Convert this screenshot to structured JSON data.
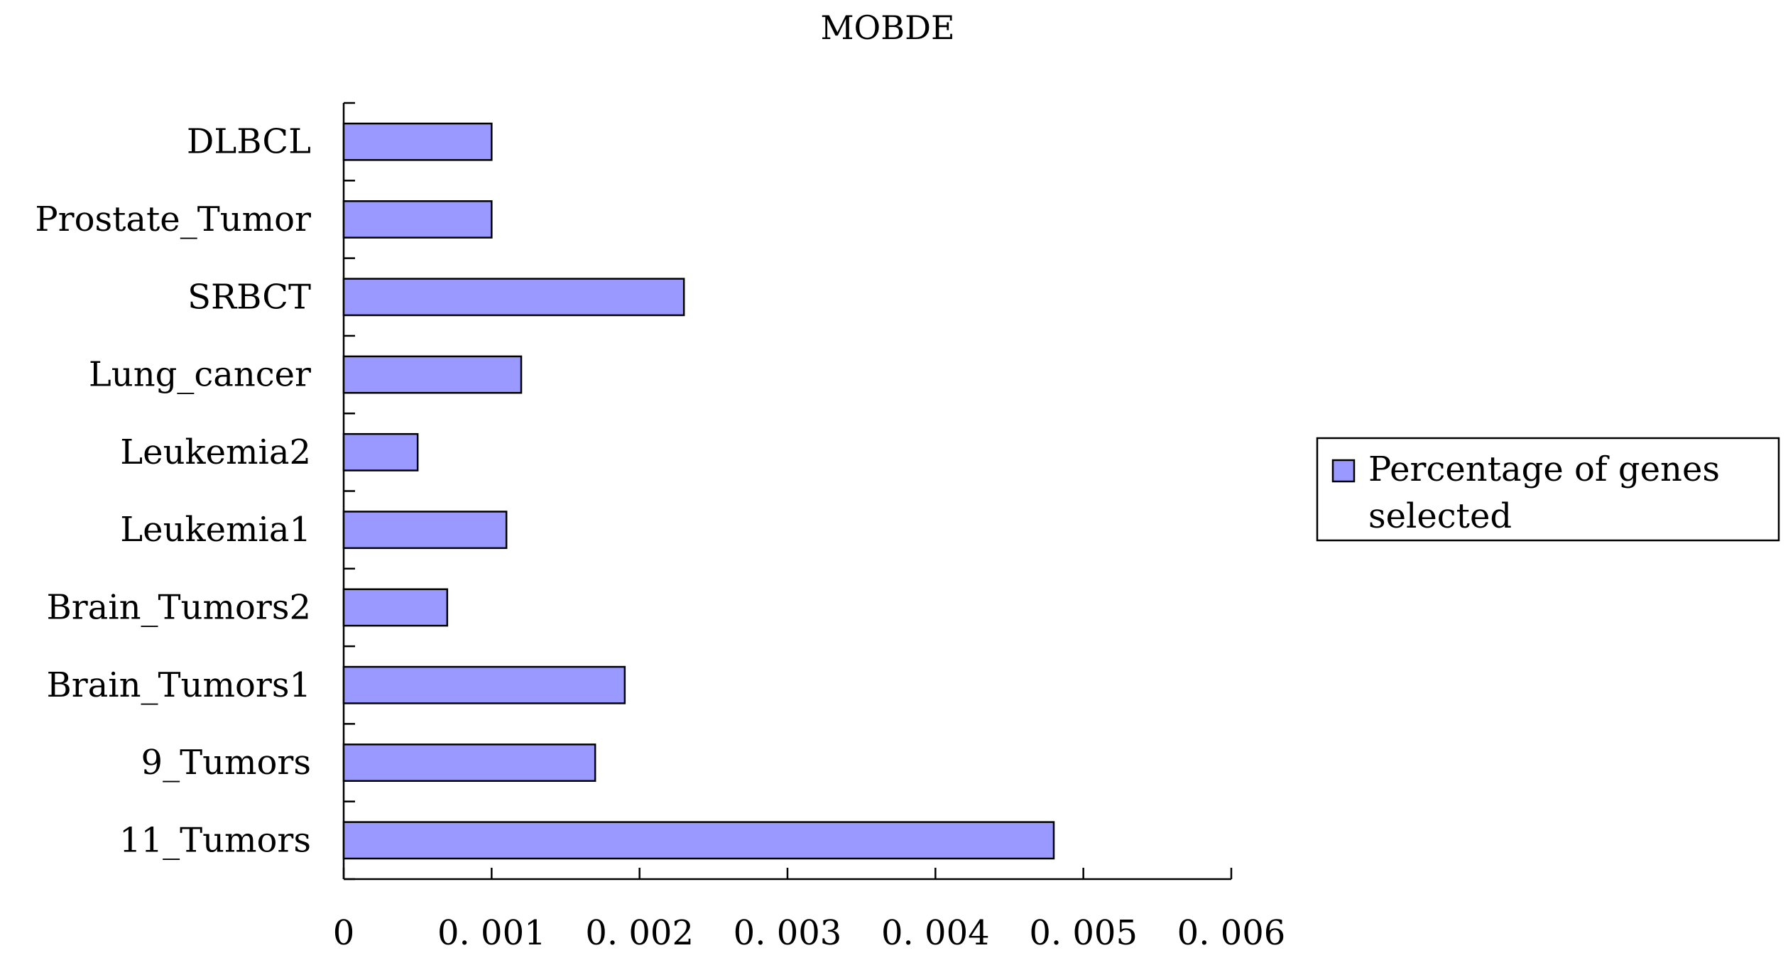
{
  "chart_data": {
    "type": "bar",
    "orientation": "horizontal",
    "title": "MOBDE",
    "xlabel": "",
    "ylabel": "",
    "categories": [
      "11_Tumors",
      "9_Tumors",
      "Brain_Tumors1",
      "Brain_Tumors2",
      "Leukemia1",
      "Leukemia2",
      "Lung_cancer",
      "SRBCT",
      "Prostate_Tumor",
      "DLBCL"
    ],
    "series": [
      {
        "name": "Percentage of genes selected",
        "values": [
          0.0048,
          0.0017,
          0.0019,
          0.0007,
          0.0011,
          0.0005,
          0.0012,
          0.0023,
          0.001,
          0.001
        ]
      }
    ],
    "xlim": [
      0,
      0.006
    ],
    "x_ticks": [
      0,
      0.001,
      0.002,
      0.003,
      0.004,
      0.005,
      0.006
    ],
    "x_tick_labels": [
      "0",
      "0. 001",
      "0. 002",
      "0. 003",
      "0. 004",
      "0. 005",
      "0. 006"
    ],
    "legend": {
      "position": "right",
      "lines": [
        "Percentage of genes",
        "selected"
      ]
    },
    "grid": false,
    "colors": {
      "bar_fill": "#9999ff",
      "bar_stroke": "#000000",
      "axis": "#000000"
    }
  }
}
